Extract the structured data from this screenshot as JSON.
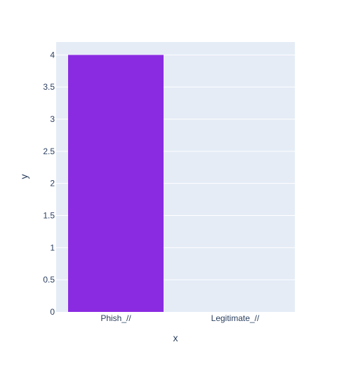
{
  "chart_data": {
    "type": "bar",
    "categories": [
      "Phish_//",
      "Legitimate_//"
    ],
    "values": [
      4,
      0
    ],
    "xlabel": "x",
    "ylabel": "y",
    "ylim": [
      0,
      4.2
    ],
    "yticks": [
      0,
      0.5,
      1,
      1.5,
      2,
      2.5,
      3,
      3.5,
      4
    ],
    "ytick_labels": [
      "0",
      "0.5",
      "1",
      "1.5",
      "2",
      "2.5",
      "3",
      "3.5",
      "4"
    ],
    "grid": true,
    "colors": {
      "bar": "#8a2be2",
      "plot_background": "#e5ecf6",
      "grid": "#ffffff",
      "text": "#2a3f5f"
    }
  }
}
